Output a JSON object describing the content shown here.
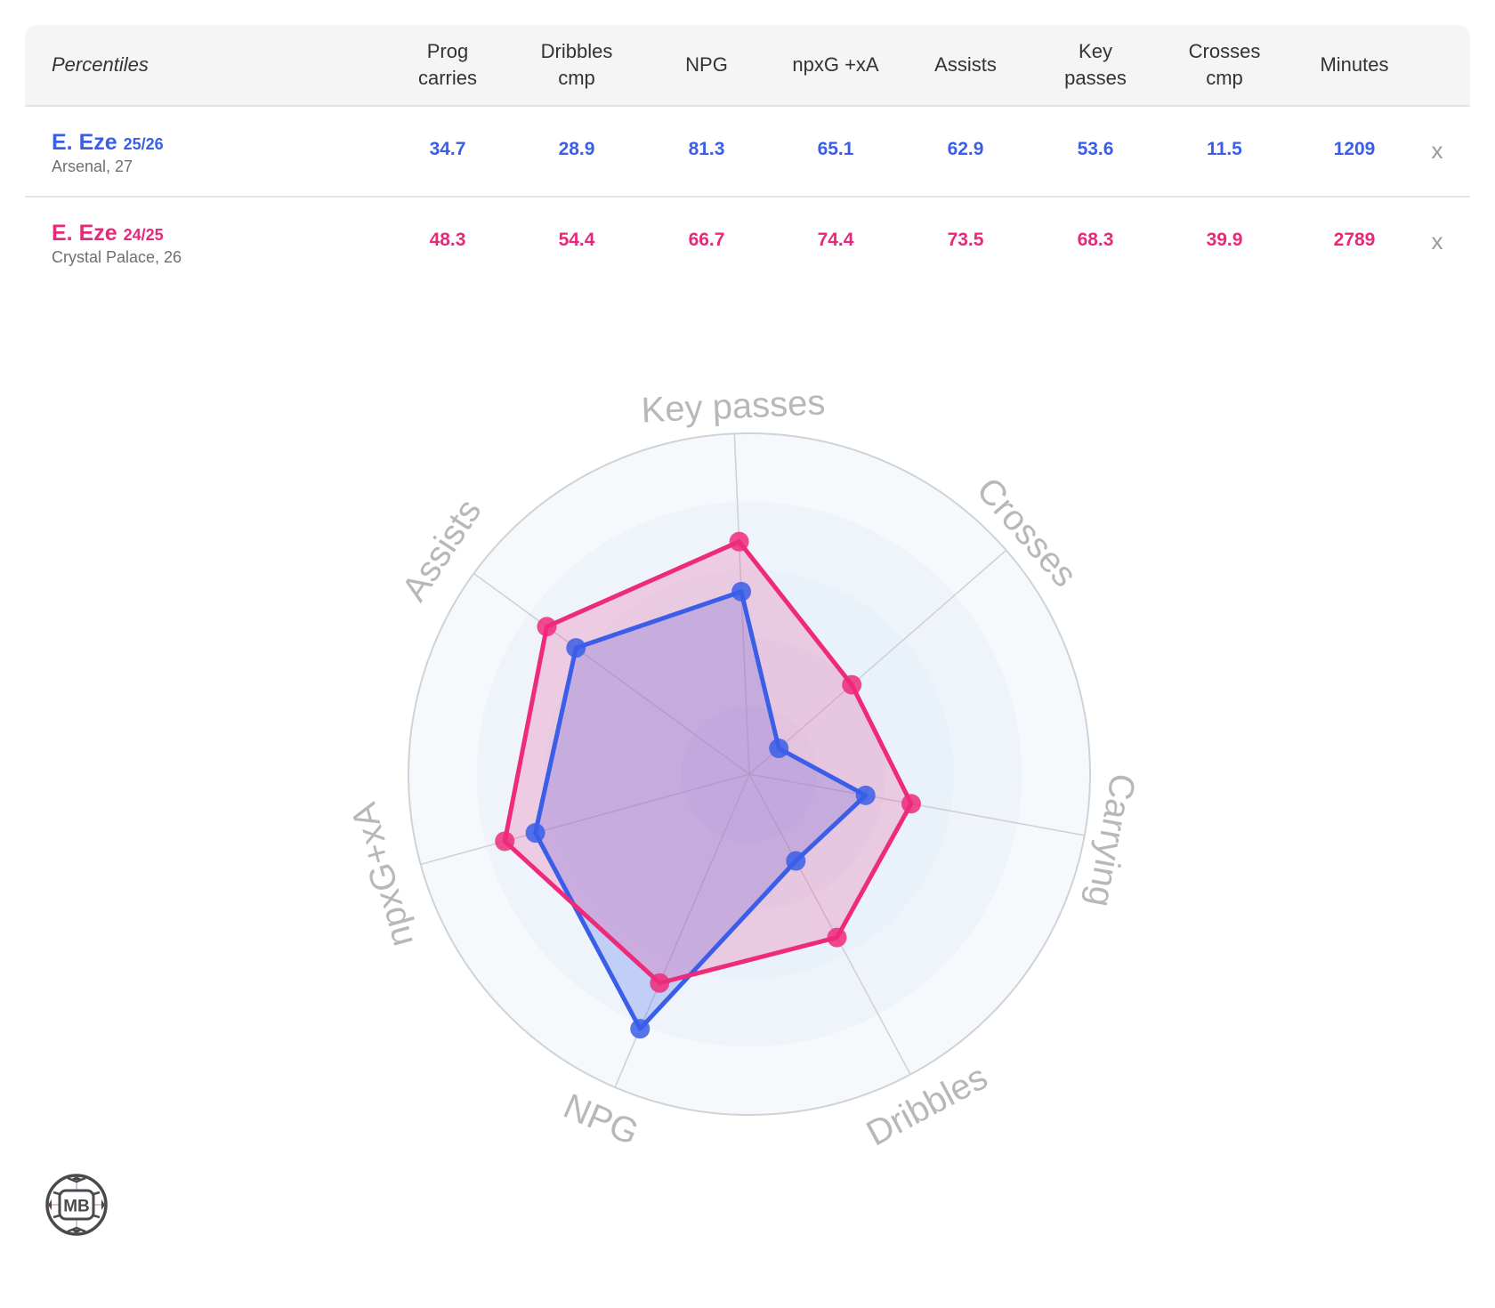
{
  "table": {
    "header_label": "Percentiles",
    "columns": [
      {
        "label_line1": "Prog",
        "label_line2": "carries"
      },
      {
        "label_line1": "Dribbles",
        "label_line2": "cmp"
      },
      {
        "label_line1": "NPG",
        "label_line2": ""
      },
      {
        "label_line1": "npxG +xA",
        "label_line2": ""
      },
      {
        "label_line1": "Assists",
        "label_line2": ""
      },
      {
        "label_line1": "Key",
        "label_line2": "passes"
      },
      {
        "label_line1": "Crosses",
        "label_line2": "cmp"
      },
      {
        "label_line1": "Minutes",
        "label_line2": ""
      }
    ],
    "rows": [
      {
        "name": "E. Eze",
        "season": "25/26",
        "sub": "Arsenal, 27",
        "color": "#3a5ee8",
        "values": [
          "34.7",
          "28.9",
          "81.3",
          "65.1",
          "62.9",
          "53.6",
          "11.5",
          "1209"
        ],
        "remove_label": "x"
      },
      {
        "name": "E. Eze",
        "season": "24/25",
        "sub": "Crystal Palace, 26",
        "color": "#e8287a",
        "values": [
          "48.3",
          "54.4",
          "66.7",
          "74.4",
          "73.5",
          "68.3",
          "39.9",
          "2789"
        ],
        "remove_label": "x"
      }
    ]
  },
  "logo": {
    "text": "MB"
  },
  "chart_data": {
    "type": "radar",
    "title": "",
    "axes": [
      "Key passes",
      "Crosses",
      "Carrying",
      "Dribbles",
      "NPG",
      "npxG+xA",
      "Assists"
    ],
    "range": [
      0,
      100
    ],
    "rings": 5,
    "series": [
      {
        "name": "E. Eze 25/26",
        "color": "#3a5ee8",
        "fill": "rgba(90,120,235,0.30)",
        "values": [
          53.6,
          11.5,
          34.7,
          28.9,
          81.3,
          65.1,
          62.9
        ]
      },
      {
        "name": "E. Eze 24/25",
        "color": "#ee2a7b",
        "fill": "rgba(235,60,140,0.22)",
        "values": [
          68.3,
          39.9,
          48.3,
          54.4,
          66.7,
          74.4,
          73.5
        ]
      }
    ],
    "label_rotation": [
      -2.5,
      48.9,
      100.4,
      -28.2,
      23.2,
      -105.4,
      -56.8
    ]
  }
}
